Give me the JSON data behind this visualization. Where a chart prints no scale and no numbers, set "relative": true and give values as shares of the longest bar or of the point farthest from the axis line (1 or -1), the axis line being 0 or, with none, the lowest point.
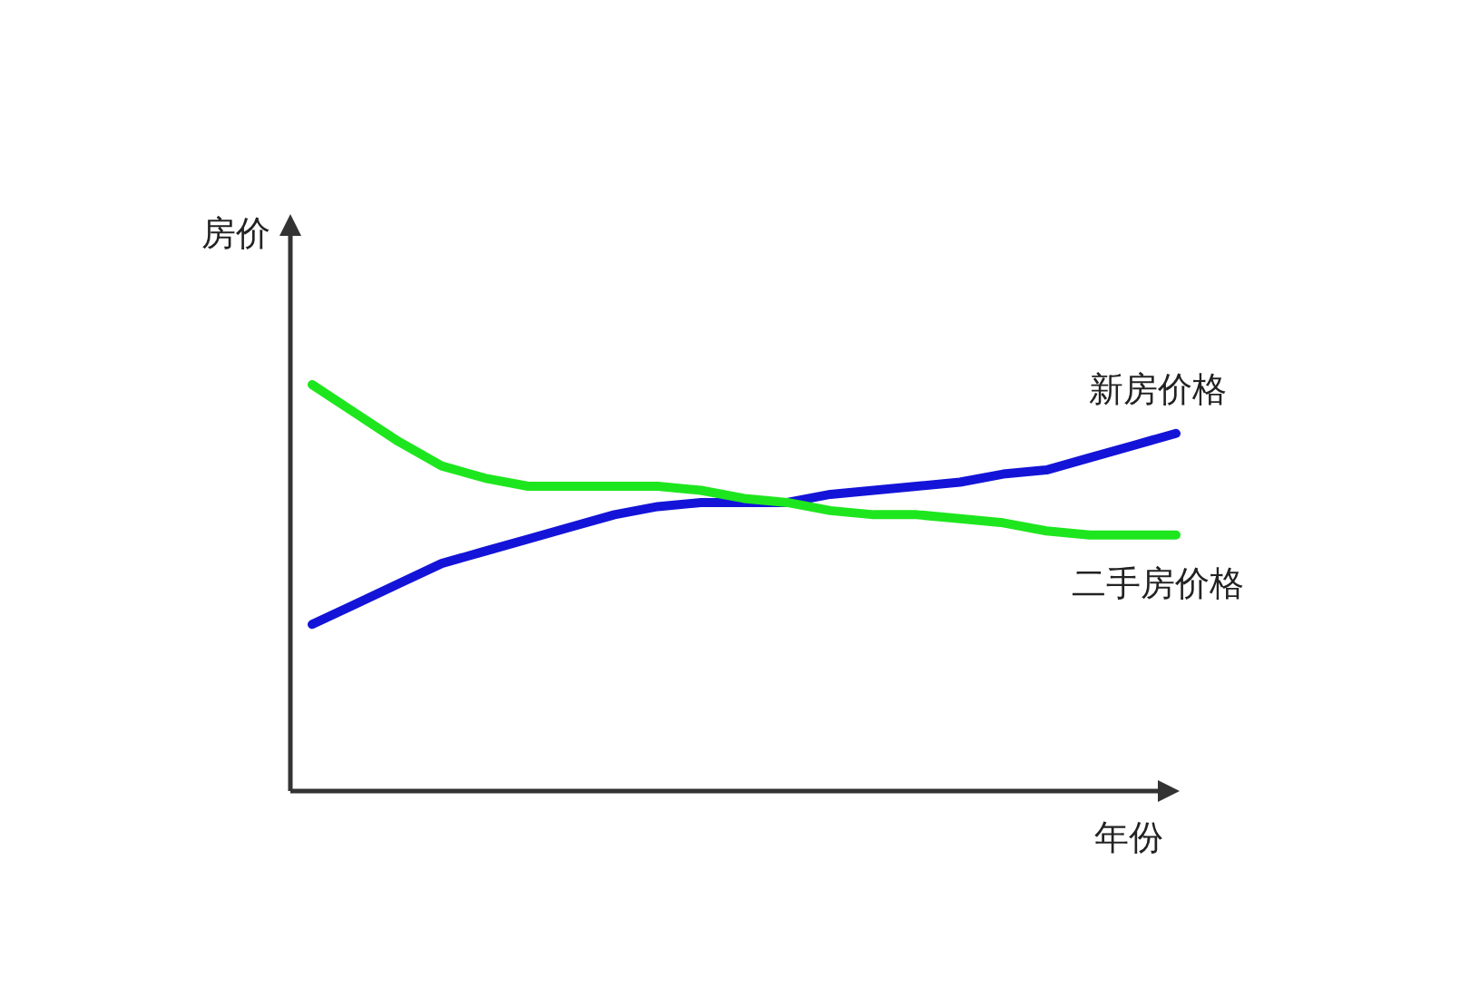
{
  "chart_data": {
    "type": "line",
    "relative": true,
    "xlabel": "年份",
    "ylabel": "房价",
    "categories": [
      null,
      null,
      null,
      null,
      null,
      null,
      null,
      null,
      null,
      null,
      null,
      null,
      null,
      null,
      null,
      null,
      null,
      null,
      null,
      null,
      null
    ],
    "series": [
      {
        "name": "新房价格",
        "color": "#1414d8",
        "values": [
          0.41,
          0.46,
          0.51,
          0.56,
          0.59,
          0.62,
          0.65,
          0.68,
          0.7,
          0.71,
          0.71,
          0.71,
          0.73,
          0.74,
          0.75,
          0.76,
          0.78,
          0.79,
          0.82,
          0.85,
          0.88
        ]
      },
      {
        "name": "二手房价格",
        "color": "#1ee61e",
        "values": [
          1.0,
          0.93,
          0.86,
          0.8,
          0.77,
          0.75,
          0.75,
          0.75,
          0.75,
          0.74,
          0.72,
          0.71,
          0.69,
          0.68,
          0.68,
          0.67,
          0.66,
          0.64,
          0.63,
          0.63,
          0.63
        ]
      }
    ]
  }
}
